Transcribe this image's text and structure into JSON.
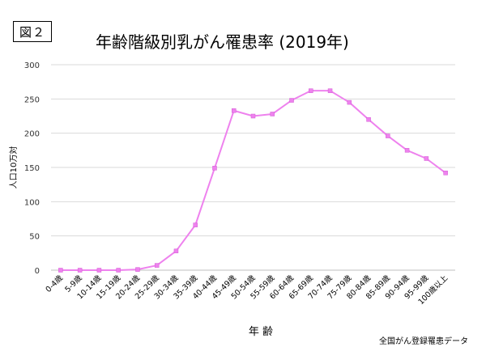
{
  "figure_tag": "図２",
  "source_note": "全国がん登録罹患データ",
  "chart_data": {
    "type": "line",
    "title": "年齢階級別乳がん罹患率 (2019年)",
    "xlabel": "年 齢",
    "ylabel": "人口10万対",
    "ylim": [
      0,
      300
    ],
    "yticks": [
      0,
      50,
      100,
      150,
      200,
      250,
      300
    ],
    "grid": true,
    "color": "#ee82ee",
    "categories": [
      "0-4歳",
      "5-9歳",
      "10-14歳",
      "15-19歳",
      "20-24歳",
      "25-29歳",
      "30-34歳",
      "35-39歳",
      "40-44歳",
      "45-49歳",
      "50-54歳",
      "55-59歳",
      "60-64歳",
      "65-69歳",
      "70-74歳",
      "75-79歳",
      "80-84歳",
      "85-89歳",
      "90-94歳",
      "95-99歳",
      "100歳以上"
    ],
    "series": [
      {
        "values": [
          0,
          0,
          0,
          0,
          1,
          7,
          28,
          66,
          149,
          233,
          225,
          228,
          248,
          262,
          262,
          245,
          220,
          196,
          175,
          163,
          142
        ]
      }
    ]
  }
}
